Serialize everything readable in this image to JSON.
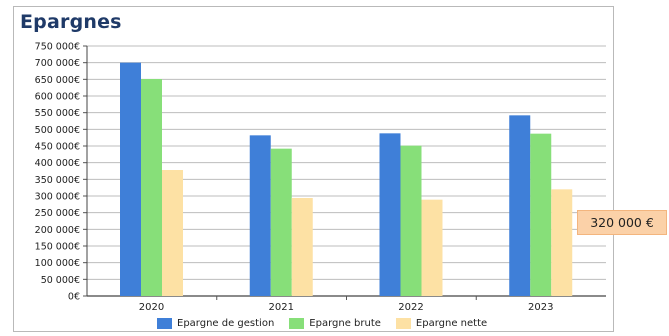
{
  "chart_data": {
    "type": "bar",
    "title": "Epargnes",
    "categories": [
      "2020",
      "2021",
      "2022",
      "2023"
    ],
    "series": [
      {
        "name": "Epargne de gestion",
        "color": "#3f7fd8",
        "values": [
          700000,
          482000,
          488000,
          542000
        ]
      },
      {
        "name": "Epargne brute",
        "color": "#87df79",
        "values": [
          651000,
          442000,
          451000,
          487000
        ]
      },
      {
        "name": "Epargne nette",
        "color": "#fde1a4",
        "values": [
          378000,
          294000,
          289000,
          320000
        ]
      }
    ],
    "ylim": [
      0,
      750000
    ],
    "y_ticks": [
      "0€",
      "50 000€",
      "100 000€",
      "150 000€",
      "200 000€",
      "250 000€",
      "300 000€",
      "350 000€",
      "400 000€",
      "450 000€",
      "500 000€",
      "550 000€",
      "600 000€",
      "650 000€",
      "700 000€",
      "750 000€"
    ],
    "grid": true,
    "legend_position": "bottom",
    "annotation": "320 000 €"
  }
}
